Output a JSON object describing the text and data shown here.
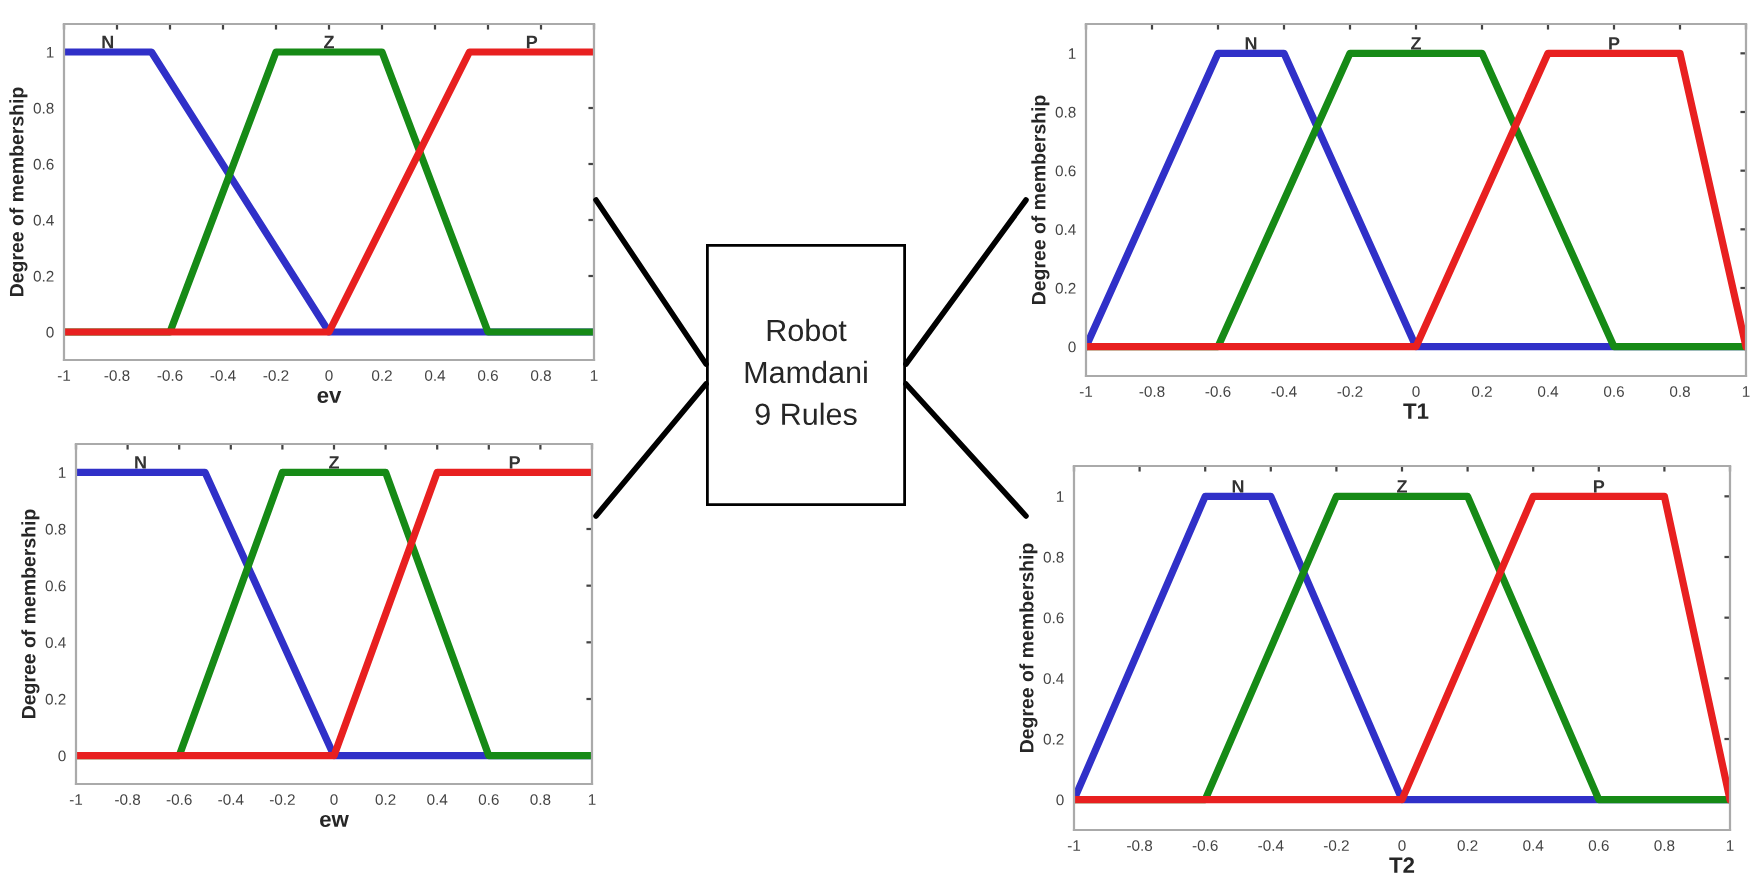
{
  "chart_data": [
    {
      "type": "line",
      "xlabel": "ev",
      "ylabel": "Degree of membership",
      "xlim": [
        -1,
        1
      ],
      "ylim": [
        -0.1,
        1.1
      ],
      "xticks": [
        -1,
        -0.8,
        -0.6,
        -0.4,
        -0.2,
        0,
        0.2,
        0.4,
        0.6,
        0.8,
        1
      ],
      "yticks": [
        0,
        0.2,
        0.4,
        0.6,
        0.8,
        1
      ],
      "grid": false,
      "legend": false,
      "marker": "none",
      "line_style": "solid",
      "series": [
        {
          "name": "N",
          "color": "#3030c8",
          "x": [
            -1,
            -0.67,
            0,
            1
          ],
          "values": [
            1,
            1,
            0,
            0
          ]
        },
        {
          "name": "Z",
          "color": "#168a16",
          "x": [
            -1,
            -0.6,
            -0.2,
            0.2,
            0.6,
            1
          ],
          "values": [
            0,
            0,
            1,
            1,
            0,
            0
          ]
        },
        {
          "name": "P",
          "color": "#e82020",
          "x": [
            -1,
            0,
            0.53,
            1
          ],
          "values": [
            0,
            0,
            1,
            1
          ]
        }
      ]
    },
    {
      "type": "line",
      "xlabel": "ew",
      "ylabel": "Degree of membership",
      "xlim": [
        -1,
        1
      ],
      "ylim": [
        -0.1,
        1.1
      ],
      "xticks": [
        -1,
        -0.8,
        -0.6,
        -0.4,
        -0.2,
        0,
        0.2,
        0.4,
        0.6,
        0.8,
        1
      ],
      "yticks": [
        0,
        0.2,
        0.4,
        0.6,
        0.8,
        1
      ],
      "grid": false,
      "legend": false,
      "marker": "none",
      "line_style": "solid",
      "series": [
        {
          "name": "N",
          "color": "#3030c8",
          "x": [
            -1,
            -0.5,
            0,
            1
          ],
          "values": [
            1,
            1,
            0,
            0
          ]
        },
        {
          "name": "Z",
          "color": "#168a16",
          "x": [
            -1,
            -0.6,
            -0.2,
            0.2,
            0.6,
            1
          ],
          "values": [
            0,
            0,
            1,
            1,
            0,
            0
          ]
        },
        {
          "name": "P",
          "color": "#e82020",
          "x": [
            -1,
            0,
            0.4,
            1
          ],
          "values": [
            0,
            0,
            1,
            1
          ]
        }
      ]
    },
    {
      "type": "other",
      "annotations": [
        "Robot",
        "Mamdani",
        "9 Rules"
      ]
    },
    {
      "type": "line",
      "xlabel": "T1",
      "ylabel": "Degree of membership",
      "xlim": [
        -1,
        1
      ],
      "ylim": [
        -0.1,
        1.1
      ],
      "xticks": [
        -1,
        -0.8,
        -0.6,
        -0.4,
        -0.2,
        0,
        0.2,
        0.4,
        0.6,
        0.8,
        1
      ],
      "yticks": [
        0,
        0.2,
        0.4,
        0.6,
        0.8,
        1
      ],
      "grid": false,
      "legend": false,
      "marker": "none",
      "line_style": "solid",
      "series": [
        {
          "name": "N",
          "color": "#3030c8",
          "x": [
            -1,
            -0.6,
            -0.4,
            0,
            1
          ],
          "values": [
            0,
            1,
            1,
            0,
            0
          ]
        },
        {
          "name": "Z",
          "color": "#168a16",
          "x": [
            -1,
            -0.6,
            -0.2,
            0.2,
            0.6,
            1
          ],
          "values": [
            0,
            0,
            1,
            1,
            0,
            0
          ]
        },
        {
          "name": "P",
          "color": "#e82020",
          "x": [
            -1,
            0,
            0.4,
            0.8,
            1
          ],
          "values": [
            0,
            0,
            1,
            1,
            0
          ]
        }
      ]
    },
    {
      "type": "line",
      "xlabel": "T2",
      "ylabel": "Degree of membership",
      "xlim": [
        -1,
        1
      ],
      "ylim": [
        -0.1,
        1.1
      ],
      "xticks": [
        -1,
        -0.8,
        -0.6,
        -0.4,
        -0.2,
        0,
        0.2,
        0.4,
        0.6,
        0.8,
        1
      ],
      "yticks": [
        0,
        0.2,
        0.4,
        0.6,
        0.8,
        1
      ],
      "grid": false,
      "legend": false,
      "marker": "none",
      "line_style": "solid",
      "series": [
        {
          "name": "N",
          "color": "#3030c8",
          "x": [
            -1,
            -0.6,
            -0.4,
            0,
            1
          ],
          "values": [
            0,
            1,
            1,
            0,
            0
          ]
        },
        {
          "name": "Z",
          "color": "#168a16",
          "x": [
            -1,
            -0.6,
            -0.2,
            0.2,
            0.6,
            1
          ],
          "values": [
            0,
            0,
            1,
            1,
            0,
            0
          ]
        },
        {
          "name": "P",
          "color": "#e82020",
          "x": [
            -1,
            0,
            0.4,
            0.8,
            1
          ],
          "values": [
            0,
            0,
            1,
            1,
            0
          ]
        }
      ]
    }
  ]
}
